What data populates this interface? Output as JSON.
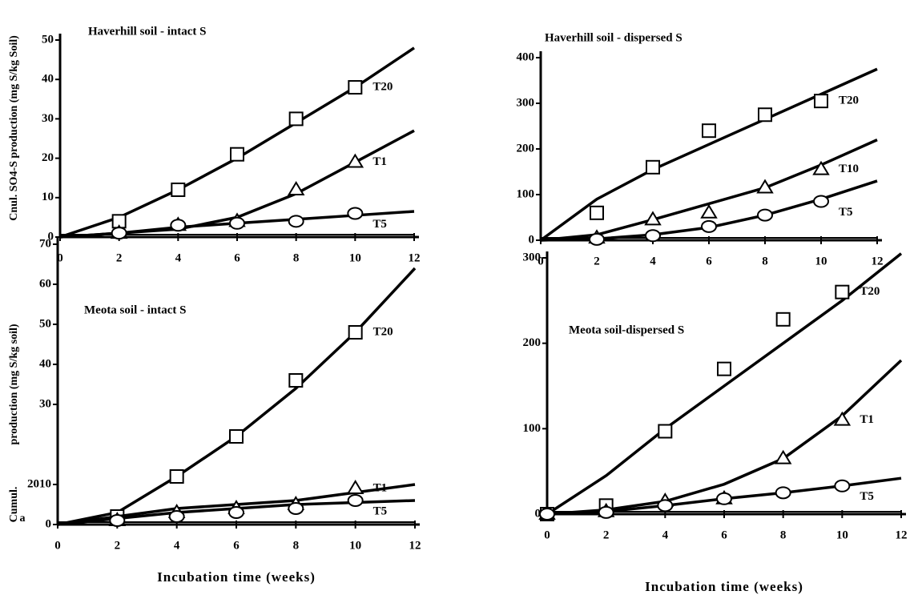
{
  "chart_data": [
    {
      "type": "line",
      "title": "Haverhill soil - intact S",
      "ylabel": "Cnul. SO4-S production (mg S/kg Soil)",
      "xlim": [
        0,
        12
      ],
      "xticks": [
        0,
        2,
        4,
        6,
        8,
        10,
        12
      ],
      "ylim": [
        0,
        50
      ],
      "yticks": [
        0,
        10,
        20,
        30,
        40,
        50
      ],
      "x": [
        2,
        4,
        6,
        8,
        10
      ],
      "fit_x": [
        0,
        2,
        4,
        6,
        8,
        10,
        12
      ],
      "series": [
        {
          "name": "T20",
          "marker": "square",
          "values": [
            4,
            12,
            21,
            30,
            38
          ],
          "fit": [
            0,
            5,
            12,
            20,
            29,
            38,
            48
          ]
        },
        {
          "name": "T1",
          "marker": "triangle",
          "values": [
            1,
            3,
            4,
            12,
            19
          ],
          "fit": [
            0,
            1,
            2,
            5,
            11,
            19,
            27
          ]
        },
        {
          "name": "T5",
          "marker": "circle",
          "values": [
            1,
            3,
            3.5,
            4,
            6
          ],
          "fit": [
            0,
            1,
            2.5,
            3.5,
            4.5,
            5.5,
            6.5
          ]
        }
      ]
    },
    {
      "type": "line",
      "title": "Haverhill soil - dispersed S",
      "xlim": [
        0,
        12
      ],
      "xticks": [
        0,
        2,
        4,
        6,
        8,
        10,
        12
      ],
      "ylim": [
        0,
        400
      ],
      "yticks": [
        0,
        100,
        200,
        300,
        400
      ],
      "x": [
        2,
        4,
        6,
        8,
        10
      ],
      "fit_x": [
        0,
        2,
        4,
        6,
        8,
        10,
        12
      ],
      "series": [
        {
          "name": "T20",
          "marker": "square",
          "values": [
            60,
            160,
            240,
            275,
            305
          ],
          "fit": [
            0,
            90,
            155,
            210,
            265,
            320,
            375
          ]
        },
        {
          "name": "T10",
          "marker": "triangle",
          "values": [
            5,
            45,
            60,
            115,
            155
          ],
          "fit": [
            0,
            12,
            45,
            80,
            115,
            165,
            220
          ]
        },
        {
          "name": "T5",
          "marker": "circle",
          "values": [
            2,
            10,
            30,
            55,
            85
          ],
          "fit": [
            0,
            3,
            12,
            28,
            55,
            90,
            130
          ]
        }
      ]
    },
    {
      "type": "line",
      "title": "Meota soil - intact S",
      "ylabel": "production (mg S/kg soil)",
      "ylabel2": "Cumul.",
      "ylabel3": "a",
      "xlim": [
        0,
        12
      ],
      "xticks": [
        0,
        2,
        4,
        6,
        8,
        10,
        12
      ],
      "ylim": [
        0,
        70
      ],
      "yticks": [
        0,
        {
          "value": 10,
          "label": "2010"
        },
        30,
        40,
        50,
        60,
        70
      ],
      "x": [
        2,
        4,
        6,
        8,
        10
      ],
      "fit_x": [
        0,
        2,
        4,
        6,
        8,
        10,
        12
      ],
      "xlabel": "Incubation time (weeks)",
      "series": [
        {
          "name": "T20",
          "marker": "square",
          "values": [
            2,
            12,
            22,
            36,
            48
          ],
          "fit": [
            0,
            3,
            12,
            22,
            34,
            48,
            64
          ]
        },
        {
          "name": "T1",
          "marker": "triangle",
          "values": [
            1,
            3,
            4,
            5,
            9
          ],
          "fit": [
            0,
            2,
            4,
            5,
            6,
            8,
            10
          ]
        },
        {
          "name": "T5",
          "marker": "circle",
          "values": [
            1,
            2,
            3,
            4,
            6
          ],
          "fit": [
            0,
            1.5,
            3,
            4,
            5,
            5.5,
            6
          ]
        }
      ]
    },
    {
      "type": "line",
      "title": "Meota soil-dispersed S",
      "xlim": [
        0,
        12
      ],
      "xticks": [
        0,
        2,
        4,
        6,
        8,
        10,
        12
      ],
      "ylim": [
        0,
        300
      ],
      "yticks": [
        0,
        100,
        200,
        300
      ],
      "x": [
        0,
        2,
        4,
        6,
        8,
        10
      ],
      "fit_x": [
        0,
        2,
        4,
        6,
        8,
        10,
        12
      ],
      "xlabel": "Incubation time (weeks)",
      "series": [
        {
          "name": "T20",
          "marker": "square",
          "values": [
            0,
            10,
            97,
            170,
            228,
            260
          ],
          "fit": [
            0,
            45,
            100,
            150,
            200,
            250,
            305
          ]
        },
        {
          "name": "T1",
          "marker": "triangle",
          "values": [
            0,
            3,
            15,
            18,
            65,
            110
          ],
          "fit": [
            0,
            5,
            15,
            35,
            65,
            115,
            180
          ]
        },
        {
          "name": "T5",
          "marker": "circle",
          "values": [
            0,
            2,
            10,
            18,
            25,
            33
          ],
          "fit": [
            0,
            3,
            10,
            18,
            25,
            33,
            42
          ]
        }
      ]
    }
  ]
}
